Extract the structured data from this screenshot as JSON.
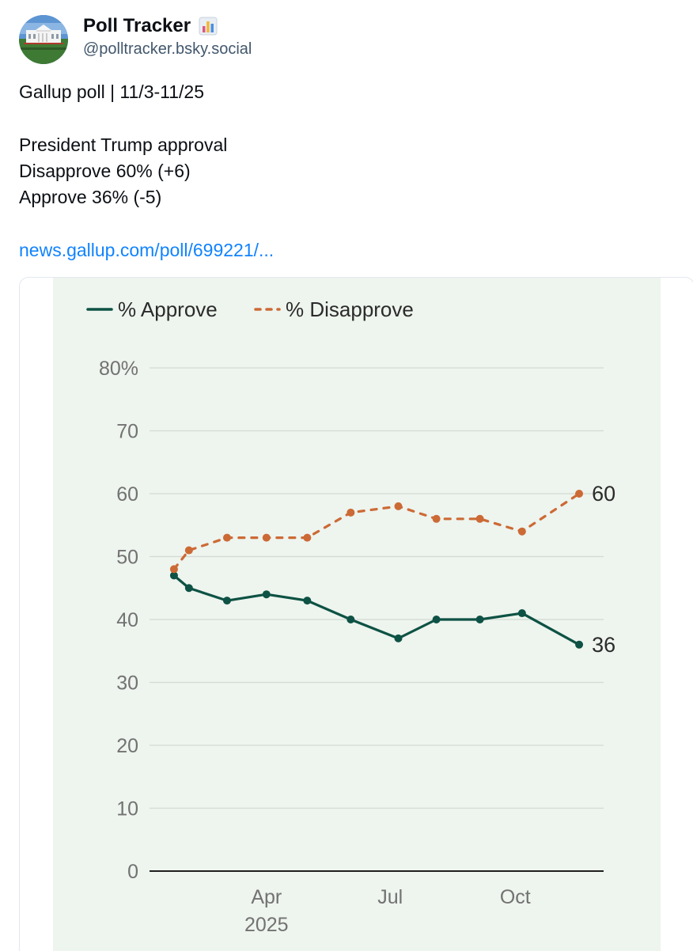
{
  "author": {
    "display_name": "Poll Tracker",
    "badge_icon": "bar-chart-emoji",
    "handle": "@polltracker.bsky.social",
    "avatar_icon": "white-house-avatar"
  },
  "post": {
    "lines": [
      "Gallup poll | 11/3-11/25",
      "",
      "President Trump approval",
      "Disapprove 60% (+6)",
      "Approve 36% (-5)",
      ""
    ],
    "link_text": "news.gallup.com/poll/699221/..."
  },
  "chart_data": {
    "type": "line",
    "ylim": [
      0,
      80
    ],
    "y_ticks": [
      0,
      10,
      20,
      30,
      40,
      50,
      60,
      70,
      80
    ],
    "y_tick_labels": [
      "0",
      "10",
      "20",
      "30",
      "40",
      "50",
      "60",
      "70",
      "80%"
    ],
    "x_ticks": [
      {
        "x": "2025-04-01",
        "label": "Apr",
        "sublabel": "2025"
      },
      {
        "x": "2025-07-01",
        "label": "Jul",
        "sublabel": ""
      },
      {
        "x": "2025-10-01",
        "label": "Oct",
        "sublabel": ""
      }
    ],
    "x_range": [
      "2025-01-05",
      "2025-12-05"
    ],
    "legend_position": "top-left",
    "grid": true,
    "series": [
      {
        "name": "% Approve",
        "color": "#0d5244",
        "style": "solid",
        "points": [
          {
            "x": "2025-01-23",
            "y": 47
          },
          {
            "x": "2025-02-03",
            "y": 45
          },
          {
            "x": "2025-03-03",
            "y": 43
          },
          {
            "x": "2025-04-01",
            "y": 44
          },
          {
            "x": "2025-05-01",
            "y": 43
          },
          {
            "x": "2025-06-02",
            "y": 40
          },
          {
            "x": "2025-07-07",
            "y": 37
          },
          {
            "x": "2025-08-04",
            "y": 40
          },
          {
            "x": "2025-09-05",
            "y": 40
          },
          {
            "x": "2025-10-06",
            "y": 41
          },
          {
            "x": "2025-11-17",
            "y": 36
          }
        ],
        "end_label": "36"
      },
      {
        "name": "% Disapprove",
        "color": "#cc6a35",
        "style": "dashed",
        "points": [
          {
            "x": "2025-01-23",
            "y": 48
          },
          {
            "x": "2025-02-03",
            "y": 51
          },
          {
            "x": "2025-03-03",
            "y": 53
          },
          {
            "x": "2025-04-01",
            "y": 53
          },
          {
            "x": "2025-05-01",
            "y": 53
          },
          {
            "x": "2025-06-02",
            "y": 57
          },
          {
            "x": "2025-07-07",
            "y": 58
          },
          {
            "x": "2025-08-04",
            "y": 56
          },
          {
            "x": "2025-09-05",
            "y": 56
          },
          {
            "x": "2025-10-06",
            "y": 54
          },
          {
            "x": "2025-11-17",
            "y": 60
          }
        ],
        "end_label": "60"
      }
    ]
  }
}
